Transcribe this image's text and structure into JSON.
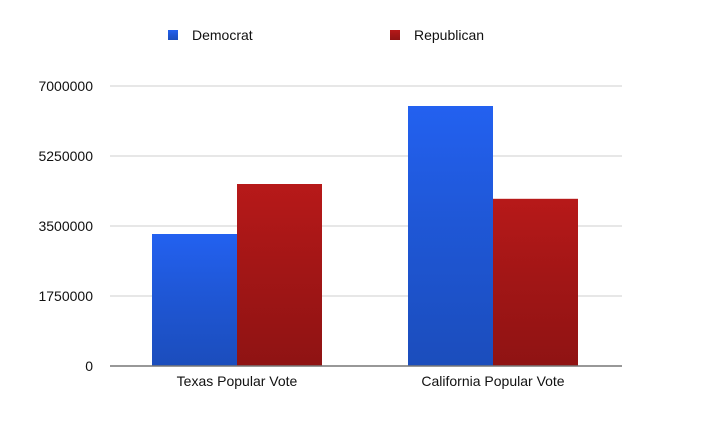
{
  "chart_data": {
    "type": "bar",
    "categories": [
      "Texas Popular Vote",
      "California Popular Vote"
    ],
    "series": [
      {
        "name": "Democrat",
        "values": [
          3300000,
          6500000
        ],
        "color": "#1f57d6"
      },
      {
        "name": "Republican",
        "values": [
          4550000,
          4180000
        ],
        "color": "#a31616"
      }
    ],
    "title": "",
    "xlabel": "",
    "ylabel": "",
    "ylim": [
      0,
      7000000
    ],
    "yticks": [
      "0",
      "1750000",
      "3500000",
      "5250000",
      "7000000"
    ],
    "ytick_values": [
      0,
      1750000,
      3500000,
      5250000,
      7000000
    ],
    "grid": true,
    "legend_position": "top"
  }
}
